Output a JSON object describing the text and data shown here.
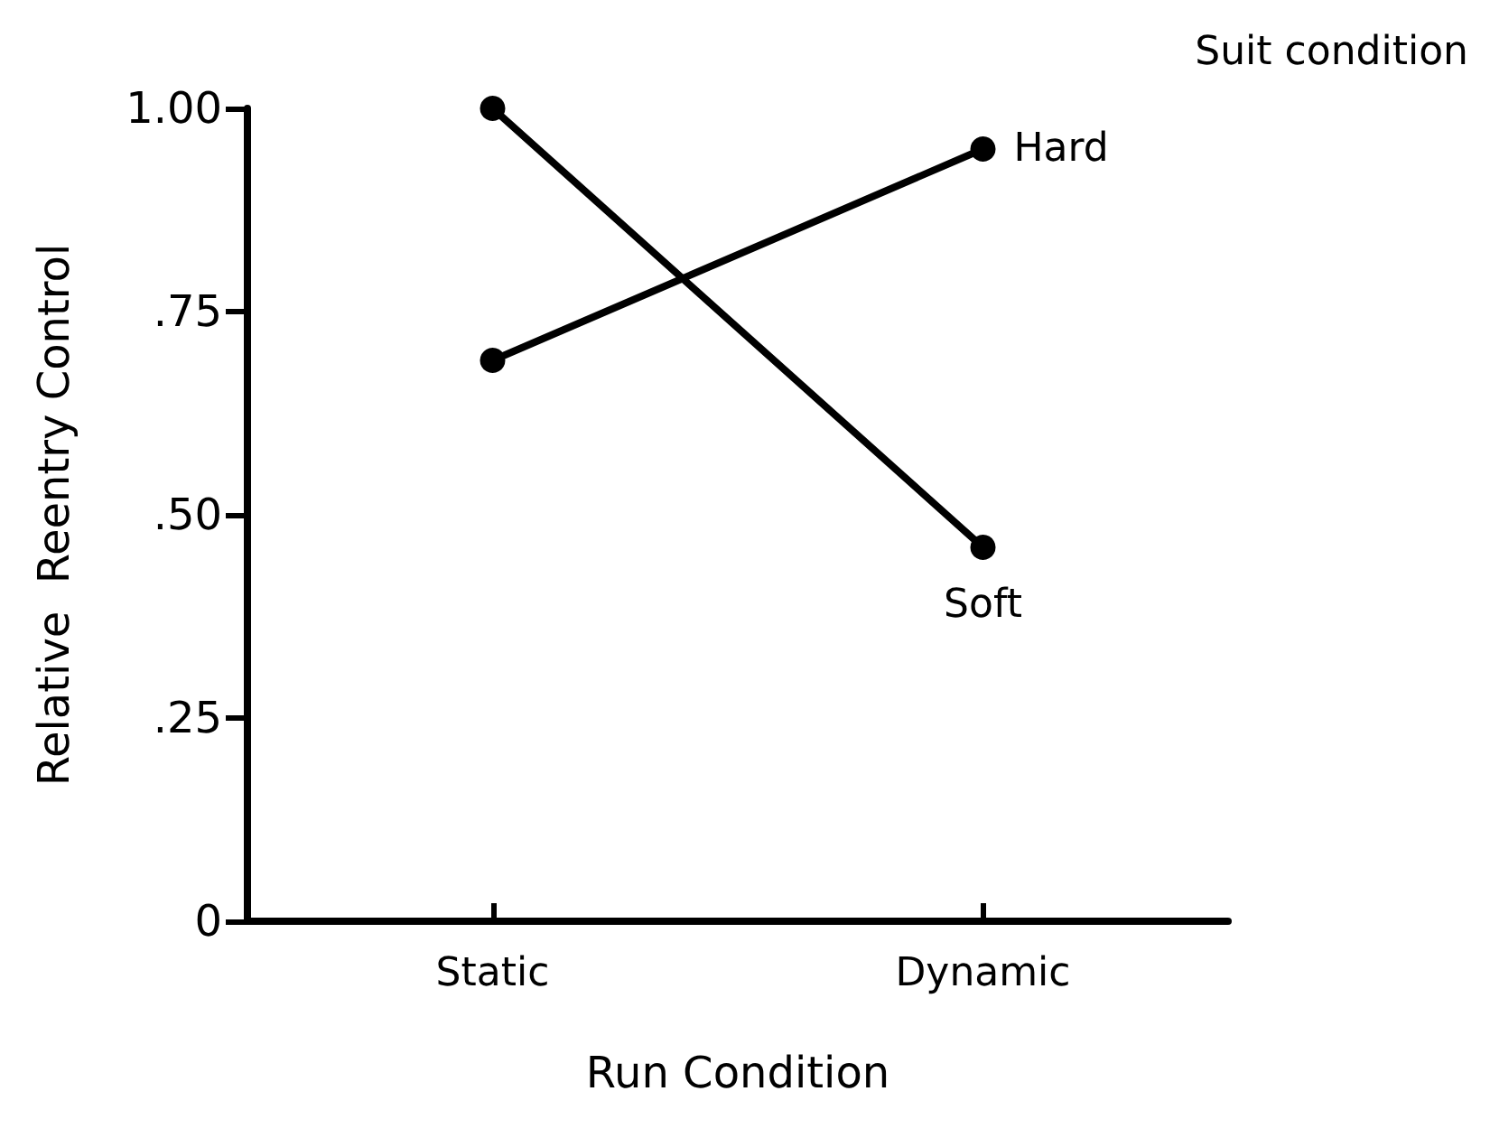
{
  "chart_data": {
    "type": "line",
    "xlabel": "Run Condition",
    "ylabel": "Relative  Reentry Control",
    "legend_title": "Suit condition",
    "categories": [
      "Static",
      "Dynamic"
    ],
    "series": [
      {
        "name": "Soft",
        "color": "#000000",
        "values": [
          1.0,
          0.46
        ]
      },
      {
        "name": "Hard",
        "color": "#000000",
        "values": [
          0.69,
          0.95
        ]
      }
    ],
    "ylim": [
      0,
      1
    ],
    "yticks": [
      {
        "value": 0,
        "label": "0"
      },
      {
        "value": 0.25,
        "label": ".25"
      },
      {
        "value": 0.5,
        "label": ".50"
      },
      {
        "value": 0.75,
        "label": ".75"
      },
      {
        "value": 1,
        "label": "1.00"
      }
    ],
    "marker": "circle",
    "line_style": "solid"
  }
}
